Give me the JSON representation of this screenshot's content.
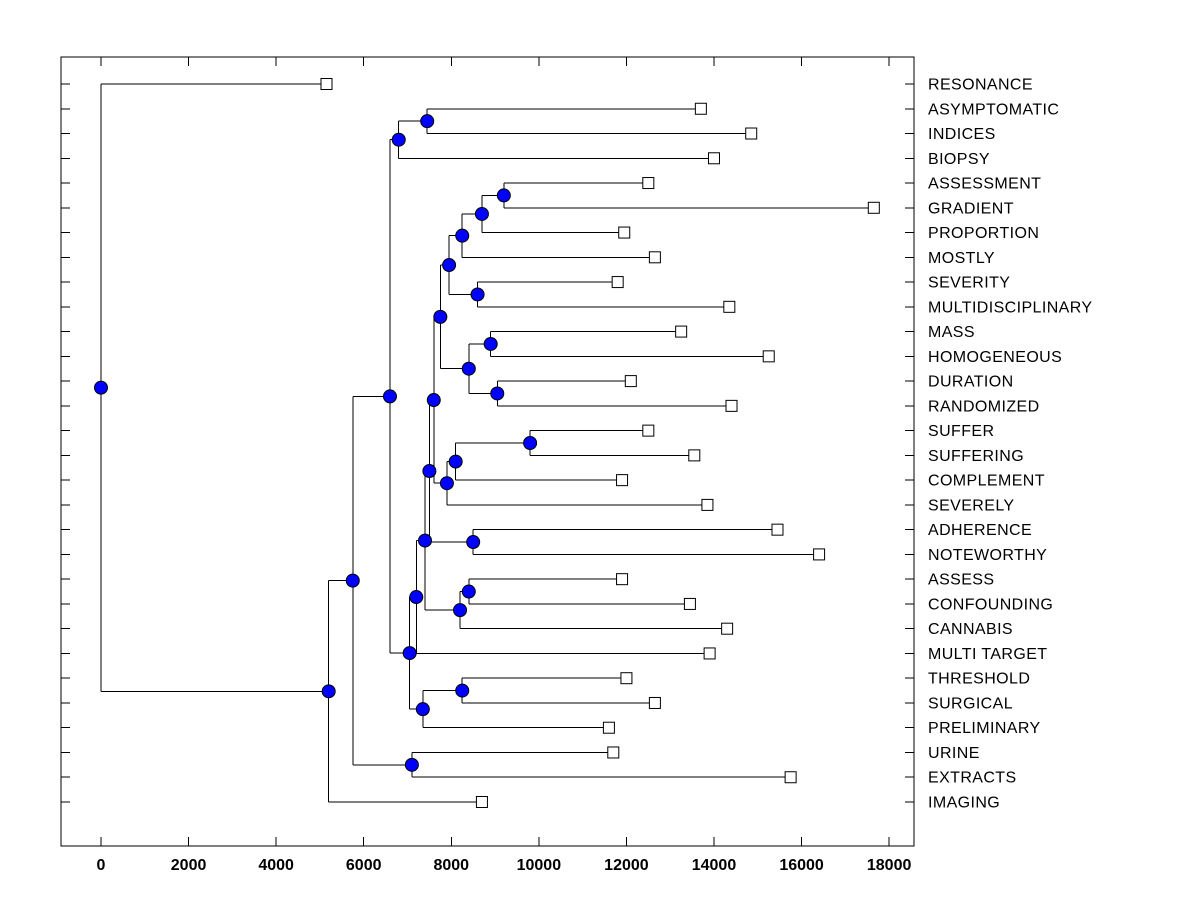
{
  "chart_data": {
    "type": "dendrogram",
    "orientation": "left-to-right",
    "title": "",
    "xlabel": "",
    "ylabel": "",
    "x_axis": {
      "ticks": [
        0,
        2000,
        4000,
        6000,
        8000,
        10000,
        12000,
        14000,
        16000,
        18000
      ],
      "tick_labels": [
        "0",
        "2000",
        "4000",
        "6000",
        "8000",
        "10000",
        "12000",
        "14000",
        "16000",
        "18000"
      ],
      "range": [
        -900,
        18600
      ],
      "grid": false
    },
    "styles": {
      "line_color": "#000000",
      "branch_marker_color": "#0000ff",
      "branch_marker_stroke": "#000000",
      "leaf_marker_fill": "#ffffff",
      "leaf_marker_stroke": "#000000",
      "background": "#ffffff"
    },
    "leaves": [
      {
        "label": "RESONANCE",
        "distance": 5150
      },
      {
        "label": "ASYMPTOMATIC",
        "distance": 13700
      },
      {
        "label": "INDICES",
        "distance": 14850
      },
      {
        "label": "BIOPSY",
        "distance": 14000
      },
      {
        "label": "ASSESSMENT",
        "distance": 12500
      },
      {
        "label": "GRADIENT",
        "distance": 17650
      },
      {
        "label": "PROPORTION",
        "distance": 11950
      },
      {
        "label": "MOSTLY",
        "distance": 12650
      },
      {
        "label": "SEVERITY",
        "distance": 11800
      },
      {
        "label": "MULTIDISCIPLINARY",
        "distance": 14350
      },
      {
        "label": "MASS",
        "distance": 13250
      },
      {
        "label": "HOMOGENEOUS",
        "distance": 15250
      },
      {
        "label": "DURATION",
        "distance": 12100
      },
      {
        "label": "RANDOMIZED",
        "distance": 14400
      },
      {
        "label": "SUFFER",
        "distance": 12500
      },
      {
        "label": "SUFFERING",
        "distance": 13550
      },
      {
        "label": "COMPLEMENT",
        "distance": 11900
      },
      {
        "label": "SEVERELY",
        "distance": 13850
      },
      {
        "label": "ADHERENCE",
        "distance": 15450
      },
      {
        "label": "NOTEWORTHY",
        "distance": 16400
      },
      {
        "label": "ASSESS",
        "distance": 11900
      },
      {
        "label": "CONFOUNDING",
        "distance": 13450
      },
      {
        "label": "CANNABIS",
        "distance": 14300
      },
      {
        "label": "MULTI TARGET",
        "distance": 13900
      },
      {
        "label": "THRESHOLD",
        "distance": 12000
      },
      {
        "label": "SURGICAL",
        "distance": 12650
      },
      {
        "label": "PRELIMINARY",
        "distance": 11600
      },
      {
        "label": "URINE",
        "distance": 11700
      },
      {
        "label": "EXTRACTS",
        "distance": 15750
      },
      {
        "label": "IMAGING",
        "distance": 8700
      }
    ],
    "tree": {
      "d": 0,
      "children": [
        {
          "leaf": "RESONANCE"
        },
        {
          "d": 5200,
          "children": [
            {
              "d": 5750,
              "children": [
                {
                  "d": 6600,
                  "children": [
                    {
                      "d": 6800,
                      "children": [
                        {
                          "d": 7450,
                          "children": [
                            {
                              "leaf": "ASYMPTOMATIC"
                            },
                            {
                              "leaf": "INDICES"
                            }
                          ]
                        },
                        {
                          "leaf": "BIOPSY"
                        }
                      ]
                    },
                    {
                      "d": 7050,
                      "children": [
                        {
                          "d": 7200,
                          "children": [
                            {
                              "d": 7400,
                              "children": [
                                {
                                  "d": 7500,
                                  "children": [
                                    {
                                      "d": 7600,
                                      "children": [
                                        {
                                          "d": 7750,
                                          "children": [
                                            {
                                              "d": 7950,
                                              "children": [
                                                {
                                                  "d": 8250,
                                                  "children": [
                                                    {
                                                      "d": 8700,
                                                      "children": [
                                                        {
                                                          "d": 9200,
                                                          "children": [
                                                            {
                                                              "leaf": "ASSESSMENT"
                                                            },
                                                            {
                                                              "leaf": "GRADIENT"
                                                            }
                                                          ]
                                                        },
                                                        {
                                                          "leaf": "PROPORTION"
                                                        }
                                                      ]
                                                    },
                                                    {
                                                      "leaf": "MOSTLY"
                                                    }
                                                  ]
                                                },
                                                {
                                                  "d": 8600,
                                                  "children": [
                                                    {
                                                      "leaf": "SEVERITY"
                                                    },
                                                    {
                                                      "leaf": "MULTIDISCIPLINARY"
                                                    }
                                                  ]
                                                }
                                              ]
                                            },
                                            {
                                              "d": 8400,
                                              "children": [
                                                {
                                                  "d": 8900,
                                                  "children": [
                                                    {
                                                      "leaf": "MASS"
                                                    },
                                                    {
                                                      "leaf": "HOMOGENEOUS"
                                                    }
                                                  ]
                                                },
                                                {
                                                  "d": 9050,
                                                  "children": [
                                                    {
                                                      "leaf": "DURATION"
                                                    },
                                                    {
                                                      "leaf": "RANDOMIZED"
                                                    }
                                                  ]
                                                }
                                              ]
                                            }
                                          ]
                                        },
                                        {
                                          "d": 7900,
                                          "children": [
                                            {
                                              "d": 8100,
                                              "children": [
                                                {
                                                  "d": 9800,
                                                  "children": [
                                                    {
                                                      "leaf": "SUFFER"
                                                    },
                                                    {
                                                      "leaf": "SUFFERING"
                                                    }
                                                  ]
                                                },
                                                {
                                                  "leaf": "COMPLEMENT"
                                                }
                                              ]
                                            },
                                            {
                                              "leaf": "SEVERELY"
                                            }
                                          ]
                                        }
                                      ]
                                    },
                                    {
                                      "d": 8500,
                                      "children": [
                                        {
                                          "leaf": "ADHERENCE"
                                        },
                                        {
                                          "leaf": "NOTEWORTHY"
                                        }
                                      ]
                                    }
                                  ]
                                },
                                {
                                  "d": 8200,
                                  "children": [
                                    {
                                      "d": 8400,
                                      "children": [
                                        {
                                          "leaf": "ASSESS"
                                        },
                                        {
                                          "leaf": "CONFOUNDING"
                                        }
                                      ]
                                    },
                                    {
                                      "leaf": "CANNABIS"
                                    }
                                  ]
                                }
                              ]
                            },
                            {
                              "leaf": "MULTI TARGET"
                            }
                          ]
                        },
                        {
                          "d": 7350,
                          "children": [
                            {
                              "d": 8250,
                              "children": [
                                {
                                  "leaf": "THRESHOLD"
                                },
                                {
                                  "leaf": "SURGICAL"
                                }
                              ]
                            },
                            {
                              "leaf": "PRELIMINARY"
                            }
                          ]
                        }
                      ]
                    }
                  ]
                },
                {
                  "d": 7100,
                  "children": [
                    {
                      "leaf": "URINE"
                    },
                    {
                      "leaf": "EXTRACTS"
                    }
                  ]
                }
              ]
            },
            {
              "leaf": "IMAGING"
            }
          ]
        }
      ]
    }
  }
}
